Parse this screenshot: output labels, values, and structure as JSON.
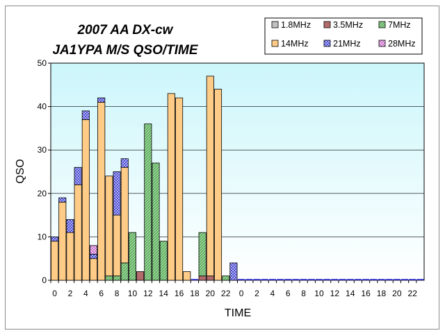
{
  "chart_data": {
    "type": "bar",
    "stacked": true,
    "title_lines": [
      "2007 AA DX-cw",
      "JA1YPA M/S  QSO/TIME"
    ],
    "xlabel": "TIME",
    "ylabel": "QSO",
    "ylim": [
      0,
      50
    ],
    "yticks": [
      0,
      10,
      20,
      30,
      40,
      50
    ],
    "grid": true,
    "legend_position": "top-right",
    "categories": [
      "0",
      "1",
      "2",
      "3",
      "4",
      "5",
      "6",
      "7",
      "8",
      "9",
      "10",
      "11",
      "12",
      "13",
      "14",
      "15",
      "16",
      "17",
      "18",
      "19",
      "20",
      "21",
      "22",
      "23",
      "0",
      "1",
      "2",
      "3",
      "4",
      "5",
      "6",
      "7",
      "8",
      "9",
      "10",
      "11",
      "12",
      "13",
      "14",
      "15",
      "16",
      "17",
      "18",
      "19",
      "20",
      "21",
      "22",
      "23"
    ],
    "tick_labels": [
      "0",
      "",
      "2",
      "",
      "4",
      "",
      "6",
      "",
      "8",
      "",
      "10",
      "",
      "12",
      "",
      "14",
      "",
      "16",
      "",
      "18",
      "",
      "20",
      "",
      "22",
      "",
      "0",
      "",
      "2",
      "",
      "4",
      "",
      "6",
      "",
      "8",
      "",
      "10",
      "",
      "12",
      "",
      "14",
      "",
      "16",
      "",
      "18",
      "",
      "20",
      "",
      "22",
      ""
    ],
    "series": [
      {
        "name": "1.8MHz",
        "color": "#c0c0c0",
        "pattern": "solid",
        "values": [
          0,
          0,
          0,
          0,
          0,
          0,
          0,
          0,
          0,
          0,
          0,
          0,
          0,
          0,
          0,
          0,
          0,
          0,
          0,
          0,
          0,
          0,
          0,
          0,
          0,
          0,
          0,
          0,
          0,
          0,
          0,
          0,
          0,
          0,
          0,
          0,
          0,
          0,
          0,
          0,
          0,
          0,
          0,
          0,
          0,
          0,
          0,
          0
        ]
      },
      {
        "name": "3.5MHz",
        "color": "#b36b6b",
        "pattern": "solid",
        "values": [
          0,
          0,
          0,
          0,
          0,
          0,
          0,
          0,
          0,
          0,
          0,
          2,
          0,
          0,
          0,
          0,
          0,
          0,
          0,
          1,
          1,
          0,
          0,
          0,
          0,
          0,
          0,
          0,
          0,
          0,
          0,
          0,
          0,
          0,
          0,
          0,
          0,
          0,
          0,
          0,
          0,
          0,
          0,
          0,
          0,
          0,
          0,
          0
        ]
      },
      {
        "name": "7MHz",
        "color": "#8fd08f",
        "pattern": "hatch",
        "values": [
          0,
          0,
          0,
          0,
          0,
          0,
          0,
          1,
          1,
          4,
          11,
          0,
          36,
          27,
          9,
          0,
          0,
          0,
          0,
          10,
          0,
          0,
          1,
          0,
          0,
          0,
          0,
          0,
          0,
          0,
          0,
          0,
          0,
          0,
          0,
          0,
          0,
          0,
          0,
          0,
          0,
          0,
          0,
          0,
          0,
          0,
          0,
          0
        ]
      },
      {
        "name": "14MHz",
        "color": "#ffcc88",
        "pattern": "solid",
        "values": [
          9,
          18,
          11,
          22,
          37,
          5,
          41,
          23,
          14,
          22,
          0,
          0,
          0,
          0,
          0,
          43,
          42,
          2,
          0,
          0,
          46,
          44,
          0,
          0,
          0,
          0,
          0,
          0,
          0,
          0,
          0,
          0,
          0,
          0,
          0,
          0,
          0,
          0,
          0,
          0,
          0,
          0,
          0,
          0,
          0,
          0,
          0,
          0
        ]
      },
      {
        "name": "21MHz",
        "color": "#8a8ae8",
        "pattern": "check",
        "values": [
          1,
          1,
          3,
          4,
          2,
          1,
          1,
          0,
          10,
          2,
          0,
          0,
          0,
          0,
          0,
          0,
          0,
          0,
          0,
          0,
          0,
          0,
          0,
          4,
          0,
          0,
          0,
          0,
          0,
          0,
          0,
          0,
          0,
          0,
          0,
          0,
          0,
          0,
          0,
          0,
          0,
          0,
          0,
          0,
          0,
          0,
          0,
          0
        ]
      },
      {
        "name": "28MHz",
        "color": "#e8a8e8",
        "pattern": "check",
        "values": [
          0,
          0,
          0,
          0,
          0,
          2,
          0,
          0,
          0,
          0,
          0,
          0,
          0,
          0,
          0,
          0,
          0,
          0,
          0,
          0,
          0,
          0,
          0,
          0,
          0,
          0,
          0,
          0,
          0,
          0,
          0,
          0,
          0,
          0,
          0,
          0,
          0,
          0,
          0,
          0,
          0,
          0,
          0,
          0,
          0,
          0,
          0,
          0
        ]
      }
    ]
  }
}
